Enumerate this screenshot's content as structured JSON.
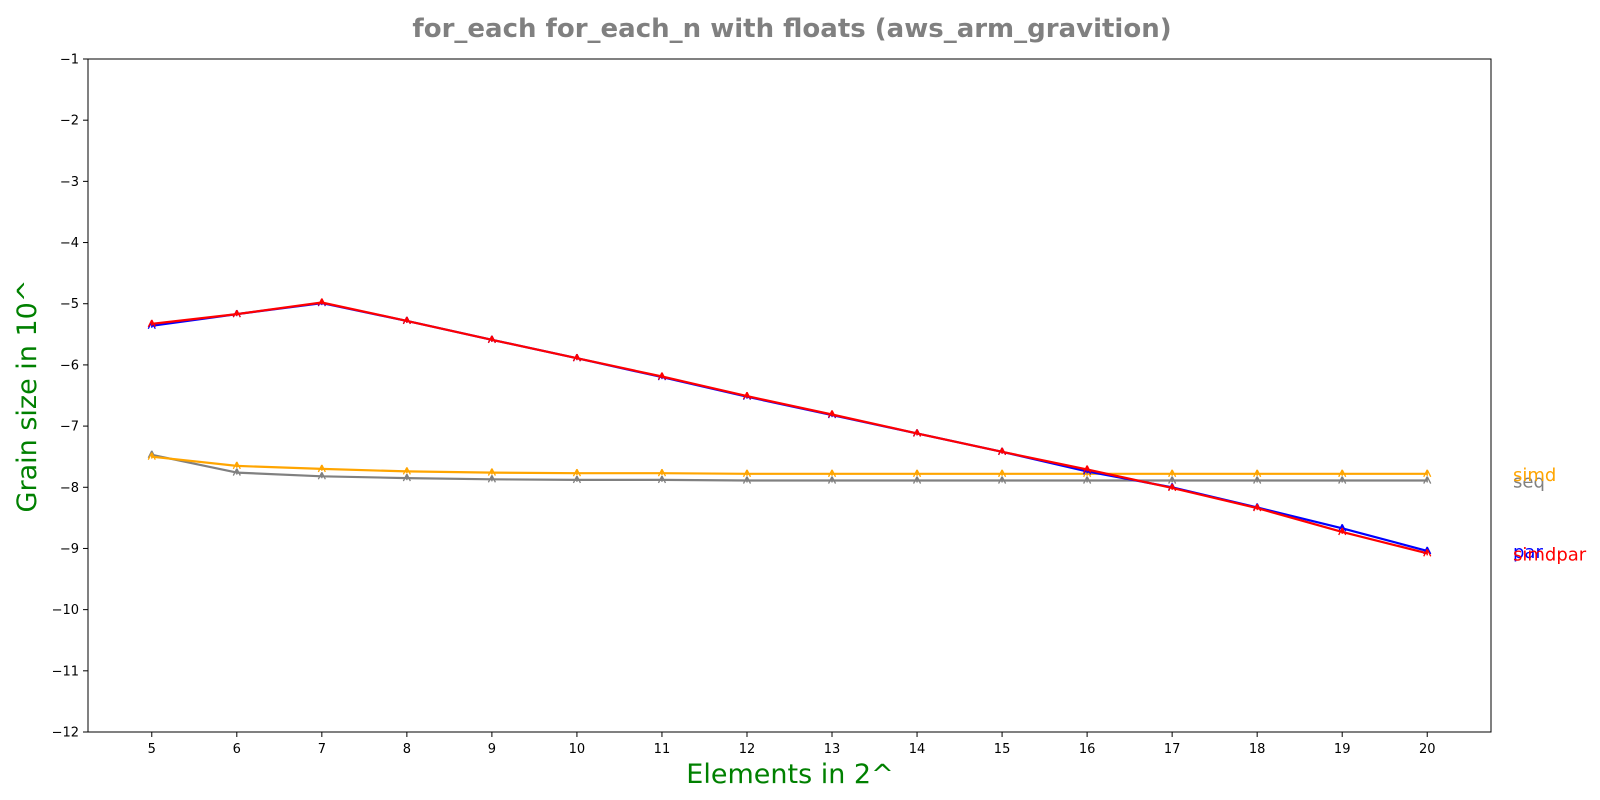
{
  "chart_data": {
    "type": "line",
    "title": "for_each for_each_n with floats  (aws_arm_gravition)",
    "xlabel": "Elements in 2^",
    "ylabel": "Grain size in 10^",
    "xlim": [
      4.25,
      20.75
    ],
    "ylim": [
      -12,
      -1
    ],
    "x_ticks": [
      5,
      6,
      7,
      8,
      9,
      10,
      11,
      12,
      13,
      14,
      15,
      16,
      17,
      18,
      19,
      20
    ],
    "y_ticks": [
      -1,
      -2,
      -3,
      -4,
      -5,
      -6,
      -7,
      -8,
      -9,
      -10,
      -11,
      -12
    ],
    "grid": false,
    "legend": "inline-right",
    "x": [
      5,
      6,
      7,
      8,
      9,
      10,
      11,
      12,
      13,
      14,
      15,
      16,
      17,
      18,
      19,
      20
    ],
    "series": [
      {
        "name": "seq",
        "color": "#808080",
        "values": [
          -7.47,
          -7.76,
          -7.82,
          -7.85,
          -7.87,
          -7.88,
          -7.88,
          -7.89,
          -7.89,
          -7.89,
          -7.89,
          -7.89,
          -7.89,
          -7.89,
          -7.89,
          -7.89
        ]
      },
      {
        "name": "simd",
        "color": "#ffa500",
        "values": [
          -7.5,
          -7.65,
          -7.7,
          -7.74,
          -7.76,
          -7.77,
          -7.77,
          -7.78,
          -7.78,
          -7.78,
          -7.78,
          -7.78,
          -7.78,
          -7.78,
          -7.78,
          -7.78
        ]
      },
      {
        "name": "par",
        "color": "#0000ff",
        "values": [
          -5.36,
          -5.17,
          -4.99,
          -5.28,
          -5.59,
          -5.89,
          -6.2,
          -6.52,
          -6.82,
          -7.12,
          -7.42,
          -7.74,
          -8.0,
          -8.33,
          -8.67,
          -9.04
        ]
      },
      {
        "name": "simdpar",
        "color": "#ff0000",
        "values": [
          -5.33,
          -5.17,
          -4.98,
          -5.28,
          -5.59,
          -5.89,
          -6.19,
          -6.51,
          -6.81,
          -7.12,
          -7.42,
          -7.71,
          -8.01,
          -8.34,
          -8.73,
          -9.08
        ]
      }
    ]
  }
}
